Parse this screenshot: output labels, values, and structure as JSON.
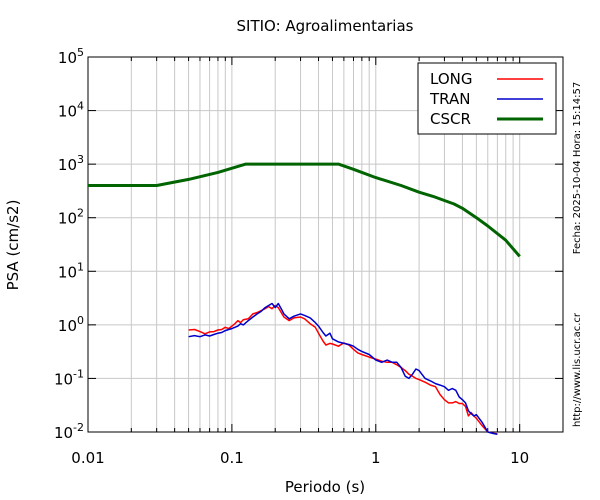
{
  "chart_data": {
    "type": "line",
    "title": "SITIO: Agroalimentarias",
    "xlabel": "Periodo (s)",
    "ylabel": "PSA (cm/s2)",
    "x_scale": "log",
    "y_scale": "log",
    "xlim": [
      0.01,
      20
    ],
    "ylim": [
      0.01,
      100000
    ],
    "x_ticks": [
      "0.01",
      "0.1",
      "1",
      "10"
    ],
    "y_ticks": [
      {
        "base": "10",
        "exp": "-2"
      },
      {
        "base": "10",
        "exp": "-1"
      },
      {
        "base": "10",
        "exp": "0"
      },
      {
        "base": "10",
        "exp": "1"
      },
      {
        "base": "10",
        "exp": "2"
      },
      {
        "base": "10",
        "exp": "3"
      },
      {
        "base": "10",
        "exp": "4"
      },
      {
        "base": "10",
        "exp": "5"
      }
    ],
    "grid": true,
    "legend_position": "top-right",
    "side_text_top": "Fecha: 2025-10-04  Hora: 15:14:57",
    "side_text_bottom": "http://www.lis.ucr.ac.cr",
    "series": [
      {
        "name": "LONG",
        "color": "#ff0000",
        "x": [
          0.05,
          0.055,
          0.06,
          0.065,
          0.07,
          0.075,
          0.08,
          0.085,
          0.09,
          0.095,
          0.1,
          0.105,
          0.11,
          0.115,
          0.12,
          0.13,
          0.14,
          0.15,
          0.16,
          0.17,
          0.18,
          0.19,
          0.2,
          0.21,
          0.22,
          0.23,
          0.25,
          0.27,
          0.3,
          0.32,
          0.35,
          0.38,
          0.4,
          0.43,
          0.45,
          0.48,
          0.5,
          0.55,
          0.6,
          0.65,
          0.7,
          0.75,
          0.8,
          0.9,
          1.0,
          1.1,
          1.2,
          1.3,
          1.4,
          1.5,
          1.6,
          1.7,
          1.8,
          1.9,
          2.0,
          2.2,
          2.4,
          2.6,
          2.8,
          3.0,
          3.2,
          3.4,
          3.6,
          3.8,
          4.0,
          4.2,
          4.4,
          4.6,
          4.8,
          5.0,
          5.5,
          6.0,
          6.5,
          7.0
        ],
        "y": [
          0.8,
          0.82,
          0.75,
          0.68,
          0.74,
          0.75,
          0.8,
          0.82,
          0.9,
          0.85,
          0.95,
          1.05,
          1.2,
          1.1,
          1.25,
          1.3,
          1.6,
          1.7,
          1.85,
          2.0,
          2.2,
          2.0,
          2.3,
          2.1,
          1.7,
          1.4,
          1.2,
          1.35,
          1.4,
          1.3,
          1.05,
          0.9,
          0.7,
          0.5,
          0.42,
          0.45,
          0.44,
          0.4,
          0.46,
          0.42,
          0.35,
          0.3,
          0.28,
          0.25,
          0.23,
          0.21,
          0.2,
          0.2,
          0.18,
          0.16,
          0.14,
          0.12,
          0.11,
          0.1,
          0.095,
          0.085,
          0.075,
          0.07,
          0.05,
          0.04,
          0.035,
          0.035,
          0.037,
          0.034,
          0.034,
          0.03,
          0.02,
          0.023,
          0.02,
          0.018,
          0.013,
          0.01,
          0.0095,
          0.0092
        ]
      },
      {
        "name": "TRAN",
        "color": "#0000cc",
        "x": [
          0.05,
          0.055,
          0.06,
          0.065,
          0.07,
          0.075,
          0.08,
          0.085,
          0.09,
          0.095,
          0.1,
          0.105,
          0.11,
          0.115,
          0.12,
          0.13,
          0.14,
          0.15,
          0.16,
          0.17,
          0.18,
          0.19,
          0.2,
          0.21,
          0.22,
          0.23,
          0.25,
          0.27,
          0.3,
          0.32,
          0.35,
          0.38,
          0.4,
          0.43,
          0.45,
          0.48,
          0.5,
          0.55,
          0.6,
          0.65,
          0.7,
          0.75,
          0.8,
          0.9,
          1.0,
          1.1,
          1.2,
          1.3,
          1.4,
          1.5,
          1.6,
          1.7,
          1.8,
          1.9,
          2.0,
          2.2,
          2.4,
          2.6,
          2.8,
          3.0,
          3.2,
          3.4,
          3.6,
          3.8,
          4.0,
          4.2,
          4.4,
          4.6,
          4.8,
          5.0,
          5.5,
          6.0,
          6.5,
          7.0
        ],
        "y": [
          0.6,
          0.63,
          0.6,
          0.65,
          0.62,
          0.66,
          0.7,
          0.72,
          0.78,
          0.82,
          0.85,
          0.9,
          0.95,
          1.05,
          1.0,
          1.2,
          1.4,
          1.6,
          1.8,
          2.1,
          2.3,
          2.5,
          2.1,
          2.5,
          2.0,
          1.6,
          1.3,
          1.45,
          1.6,
          1.5,
          1.35,
          1.1,
          0.95,
          0.72,
          0.62,
          0.7,
          0.55,
          0.48,
          0.45,
          0.43,
          0.4,
          0.35,
          0.32,
          0.28,
          0.22,
          0.2,
          0.22,
          0.2,
          0.2,
          0.16,
          0.11,
          0.1,
          0.12,
          0.15,
          0.14,
          0.1,
          0.09,
          0.08,
          0.075,
          0.07,
          0.06,
          0.065,
          0.06,
          0.045,
          0.04,
          0.035,
          0.025,
          0.022,
          0.02,
          0.021,
          0.015,
          0.01,
          0.0094,
          0.0091
        ]
      },
      {
        "name": "CSCR",
        "color": "#006400",
        "x": [
          0.01,
          0.03,
          0.05,
          0.08,
          0.125,
          0.15,
          0.2,
          0.3,
          0.4,
          0.55,
          0.7,
          1.0,
          1.5,
          2.0,
          2.5,
          3.0,
          3.5,
          4.0,
          5.0,
          6.0,
          8.0,
          10.0
        ],
        "y": [
          400,
          400,
          520,
          700,
          1000,
          1000,
          1000,
          1000,
          1000,
          1000,
          800,
          560,
          400,
          300,
          250,
          210,
          180,
          150,
          100,
          70,
          38,
          19
        ]
      }
    ]
  }
}
